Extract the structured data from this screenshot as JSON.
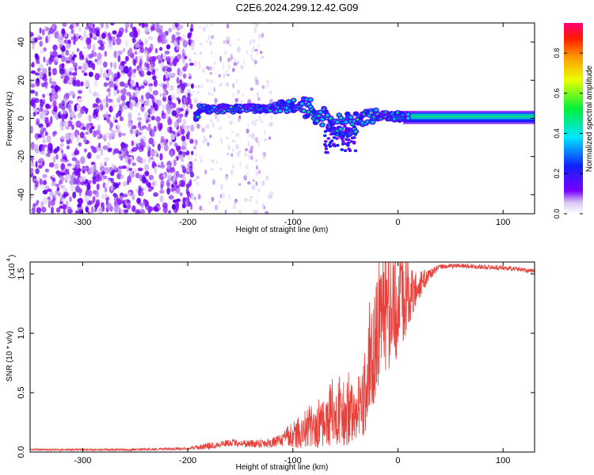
{
  "title": "C2E6.2024.299.12.42.G09",
  "chart_data": [
    {
      "type": "heatmap",
      "xlabel": "Height of straight line (km)",
      "ylabel": "Frequency (Hz)",
      "xlim": [
        -350,
        130
      ],
      "ylim": [
        -50,
        50
      ],
      "xticks": [
        -300,
        -200,
        -100,
        0,
        100
      ],
      "yticks": [
        -40,
        -20,
        0,
        20,
        40
      ],
      "colorbar": {
        "label": "Normalized spectral amplitude",
        "range": [
          0.0,
          0.95
        ],
        "ticks": [
          "0.0",
          "0.2",
          "0.4",
          "0.6",
          "0.8"
        ],
        "tick_values": [
          0.0,
          0.2,
          0.4,
          0.6,
          0.8
        ]
      },
      "features": {
        "noise_region_x": [
          -350,
          -195
        ],
        "sparse_noise_x": [
          -195,
          -120
        ],
        "signal_ridge": [
          {
            "x": -190,
            "y": 5
          },
          {
            "x": -170,
            "y": 5
          },
          {
            "x": -150,
            "y": 5
          },
          {
            "x": -130,
            "y": 5
          },
          {
            "x": -110,
            "y": 6
          },
          {
            "x": -95,
            "y": 7
          },
          {
            "x": -85,
            "y": 5
          },
          {
            "x": -75,
            "y": 2
          },
          {
            "x": -65,
            "y": -1
          },
          {
            "x": -55,
            "y": -4
          },
          {
            "x": -45,
            "y": -3
          },
          {
            "x": -35,
            "y": 0
          },
          {
            "x": -25,
            "y": 1
          },
          {
            "x": -10,
            "y": 1
          },
          {
            "x": 0,
            "y": 1
          },
          {
            "x": 10,
            "y": 1
          },
          {
            "x": 60,
            "y": 1
          },
          {
            "x": 130,
            "y": 1
          }
        ],
        "steady_band_x": [
          5,
          130
        ],
        "steady_band_y": [
          -3,
          4
        ]
      }
    },
    {
      "type": "line",
      "xlabel": "Height of straight line (km)",
      "ylabel": "SNR (10 * v/v)",
      "yscale_label": "(x10",
      "yscale_exp": "4",
      "xlim": [
        -350,
        130
      ],
      "ylim": [
        0,
        1.6
      ],
      "xticks": [
        -300,
        -200,
        -100,
        0,
        100
      ],
      "yticks": [
        0.0,
        0.5,
        1.0,
        1.5
      ],
      "ytick_labels": [
        "0.0",
        "0.5",
        "1.0",
        "1.5"
      ],
      "color": "#e8403a",
      "series": [
        {
          "points": [
            [
              -350,
              0.02
            ],
            [
              -300,
              0.02
            ],
            [
              -250,
              0.02
            ],
            [
              -200,
              0.03
            ],
            [
              -180,
              0.05
            ],
            [
              -160,
              0.08
            ],
            [
              -140,
              0.07
            ],
            [
              -120,
              0.08
            ],
            [
              -100,
              0.12
            ],
            [
              -80,
              0.18
            ],
            [
              -60,
              0.28
            ],
            [
              -45,
              0.3
            ],
            [
              -35,
              0.3
            ],
            [
              -28,
              0.6
            ],
            [
              -22,
              0.9
            ],
            [
              -15,
              1.05
            ],
            [
              -10,
              1.1
            ],
            [
              -5,
              1.15
            ],
            [
              0,
              1.2
            ],
            [
              5,
              1.25
            ],
            [
              10,
              1.3
            ],
            [
              20,
              1.4
            ],
            [
              30,
              1.5
            ],
            [
              40,
              1.56
            ],
            [
              60,
              1.57
            ],
            [
              80,
              1.56
            ],
            [
              100,
              1.55
            ],
            [
              115,
              1.54
            ],
            [
              130,
              1.52
            ]
          ],
          "noise_amplitude": [
            [
              -350,
              0.008
            ],
            [
              -200,
              0.01
            ],
            [
              -180,
              0.03
            ],
            [
              -150,
              0.03
            ],
            [
              -110,
              0.05
            ],
            [
              -90,
              0.12
            ],
            [
              -70,
              0.2
            ],
            [
              -50,
              0.25
            ],
            [
              -40,
              0.2
            ],
            [
              -30,
              0.35
            ],
            [
              -20,
              0.5
            ],
            [
              -10,
              0.45
            ],
            [
              0,
              0.4
            ],
            [
              10,
              0.25
            ],
            [
              20,
              0.12
            ],
            [
              30,
              0.05
            ],
            [
              40,
              0.02
            ],
            [
              130,
              0.02
            ]
          ]
        }
      ]
    }
  ]
}
